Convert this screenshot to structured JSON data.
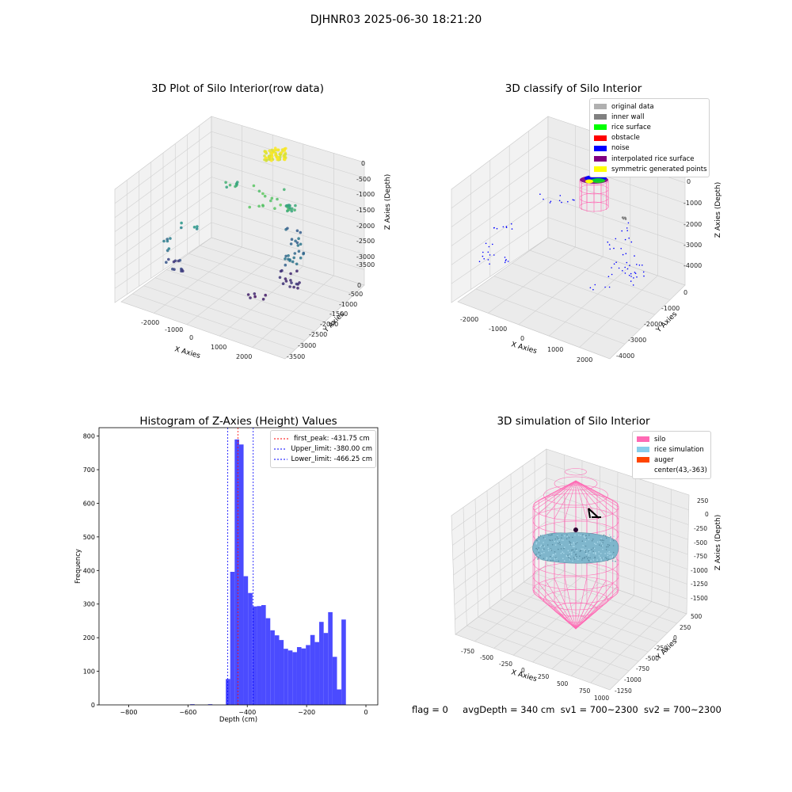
{
  "figure": {
    "title": "DJHNR03 2025-06-30 18:21:20",
    "footer": {
      "flag": "flag = 0",
      "avg_depth": "avgDepth = 340 cm",
      "sv1": "sv1 = 700~2300",
      "sv2": "sv2 = 700~2300"
    }
  },
  "chart_data": [
    {
      "type": "scatter",
      "title": "3D Plot of Silo Interior(row data)",
      "xlabel": "X Axies",
      "ylabel": "Y Axies",
      "zlabel": "Z Axies (Depth)",
      "x_ticks": [
        "-2000",
        "-1000",
        "0",
        "1000",
        "2000"
      ],
      "y_ticks": [
        "0",
        "-500",
        "-1000",
        "-1500",
        "-2000",
        "-2500",
        "-3000",
        "-3500"
      ],
      "z_ticks": [
        "0",
        "-500",
        "-1000",
        "-1500",
        "-2000",
        "-2500",
        "-3000",
        "-3500"
      ],
      "colormap": "viridis (by depth)",
      "grid": true
    },
    {
      "type": "scatter",
      "title": "3D classify of Silo Interior",
      "xlabel": "X Axies",
      "ylabel": "Y Axies",
      "zlabel": "Z Axies (Depth)",
      "x_ticks": [
        "-2000",
        "-1000",
        "0",
        "1000",
        "2000"
      ],
      "y_ticks": [
        "0",
        "-1000",
        "-2000",
        "-3000",
        "-4000"
      ],
      "z_ticks": [
        "1000",
        "0",
        "-1000",
        "-2000",
        "-3000",
        "-4000"
      ],
      "legend_position": "top-right",
      "legend": [
        {
          "label": "original data",
          "color": "#b0b0b0"
        },
        {
          "label": "inner wall",
          "color": "#808080"
        },
        {
          "label": "rice surface",
          "color": "#00ff00"
        },
        {
          "label": "obstacle",
          "color": "#ff0000"
        },
        {
          "label": "noise",
          "color": "#0000ff"
        },
        {
          "label": "interpolated rice surface",
          "color": "#800080"
        },
        {
          "label": "symmetric generated points",
          "color": "#ffff00"
        }
      ],
      "grid": true
    },
    {
      "type": "bar",
      "title": "Histogram of Z-Axies (Height) Values",
      "xlabel": "Depth (cm)",
      "ylabel": "Frequency",
      "xlim": [
        -900,
        40
      ],
      "ylim": [
        0,
        825
      ],
      "x_ticks": [
        -800,
        -600,
        -400,
        -200,
        0
      ],
      "y_ticks": [
        0,
        100,
        200,
        300,
        400,
        500,
        600,
        700,
        800
      ],
      "bin_width": 15,
      "color": "#4b4bff",
      "bins": [
        {
          "x": -720,
          "y": 0
        },
        {
          "x": -705,
          "y": 0
        },
        {
          "x": -690,
          "y": 0
        },
        {
          "x": -675,
          "y": 0
        },
        {
          "x": -660,
          "y": 0
        },
        {
          "x": -645,
          "y": 0
        },
        {
          "x": -630,
          "y": 0
        },
        {
          "x": -615,
          "y": 0
        },
        {
          "x": -600,
          "y": 0
        },
        {
          "x": -585,
          "y": 2
        },
        {
          "x": -570,
          "y": 0
        },
        {
          "x": -555,
          "y": 0
        },
        {
          "x": -540,
          "y": 0
        },
        {
          "x": -525,
          "y": 2
        },
        {
          "x": -510,
          "y": 0
        },
        {
          "x": -495,
          "y": 0
        },
        {
          "x": -480,
          "y": 0
        },
        {
          "x": -465,
          "y": 77
        },
        {
          "x": -450,
          "y": 396
        },
        {
          "x": -435,
          "y": 790
        },
        {
          "x": -420,
          "y": 775
        },
        {
          "x": -405,
          "y": 383
        },
        {
          "x": -390,
          "y": 333
        },
        {
          "x": -375,
          "y": 293
        },
        {
          "x": -360,
          "y": 294
        },
        {
          "x": -345,
          "y": 297
        },
        {
          "x": -330,
          "y": 258
        },
        {
          "x": -315,
          "y": 222
        },
        {
          "x": -300,
          "y": 207
        },
        {
          "x": -285,
          "y": 193
        },
        {
          "x": -270,
          "y": 167
        },
        {
          "x": -255,
          "y": 162
        },
        {
          "x": -240,
          "y": 157
        },
        {
          "x": -225,
          "y": 172
        },
        {
          "x": -210,
          "y": 168
        },
        {
          "x": -195,
          "y": 178
        },
        {
          "x": -180,
          "y": 208
        },
        {
          "x": -165,
          "y": 187
        },
        {
          "x": -150,
          "y": 247
        },
        {
          "x": -135,
          "y": 214
        },
        {
          "x": -120,
          "y": 276
        },
        {
          "x": -105,
          "y": 143
        },
        {
          "x": -90,
          "y": 46
        },
        {
          "x": -75,
          "y": 254
        }
      ],
      "vlines": [
        {
          "label": "first_peak: -431.75 cm",
          "x": -431.75,
          "color": "#ff0000"
        },
        {
          "label": "Upper_limit: -380.00 cm",
          "x": -380.0,
          "color": "#0000ff"
        },
        {
          "label": "Lower_limit: -466.25 cm",
          "x": -466.25,
          "color": "#0000ff"
        }
      ],
      "legend_position": "top-right"
    },
    {
      "type": "scatter",
      "title": "3D simulation of Silo Interior",
      "xlabel": "X Axies",
      "ylabel": "Y Axies",
      "zlabel": "Z Axies (Depth)",
      "x_ticks": [
        "-750",
        "-500",
        "-250",
        "0",
        "250",
        "500",
        "750",
        "1000"
      ],
      "y_ticks": [
        "500",
        "250",
        "0",
        "-250",
        "-500",
        "-750",
        "-1000",
        "-1250"
      ],
      "z_ticks": [
        "250",
        "0",
        "-250",
        "-500",
        "-750",
        "-1000",
        "-1250",
        "-1500"
      ],
      "legend_position": "top-right",
      "legend": [
        {
          "label": "silo",
          "color": "#ff69b4"
        },
        {
          "label": "rice simulation",
          "color": "#87ceeb"
        },
        {
          "label": "auger",
          "color": "#ff4500"
        },
        {
          "label": "center(43,-363)",
          "color": ""
        }
      ],
      "grid": true
    }
  ]
}
